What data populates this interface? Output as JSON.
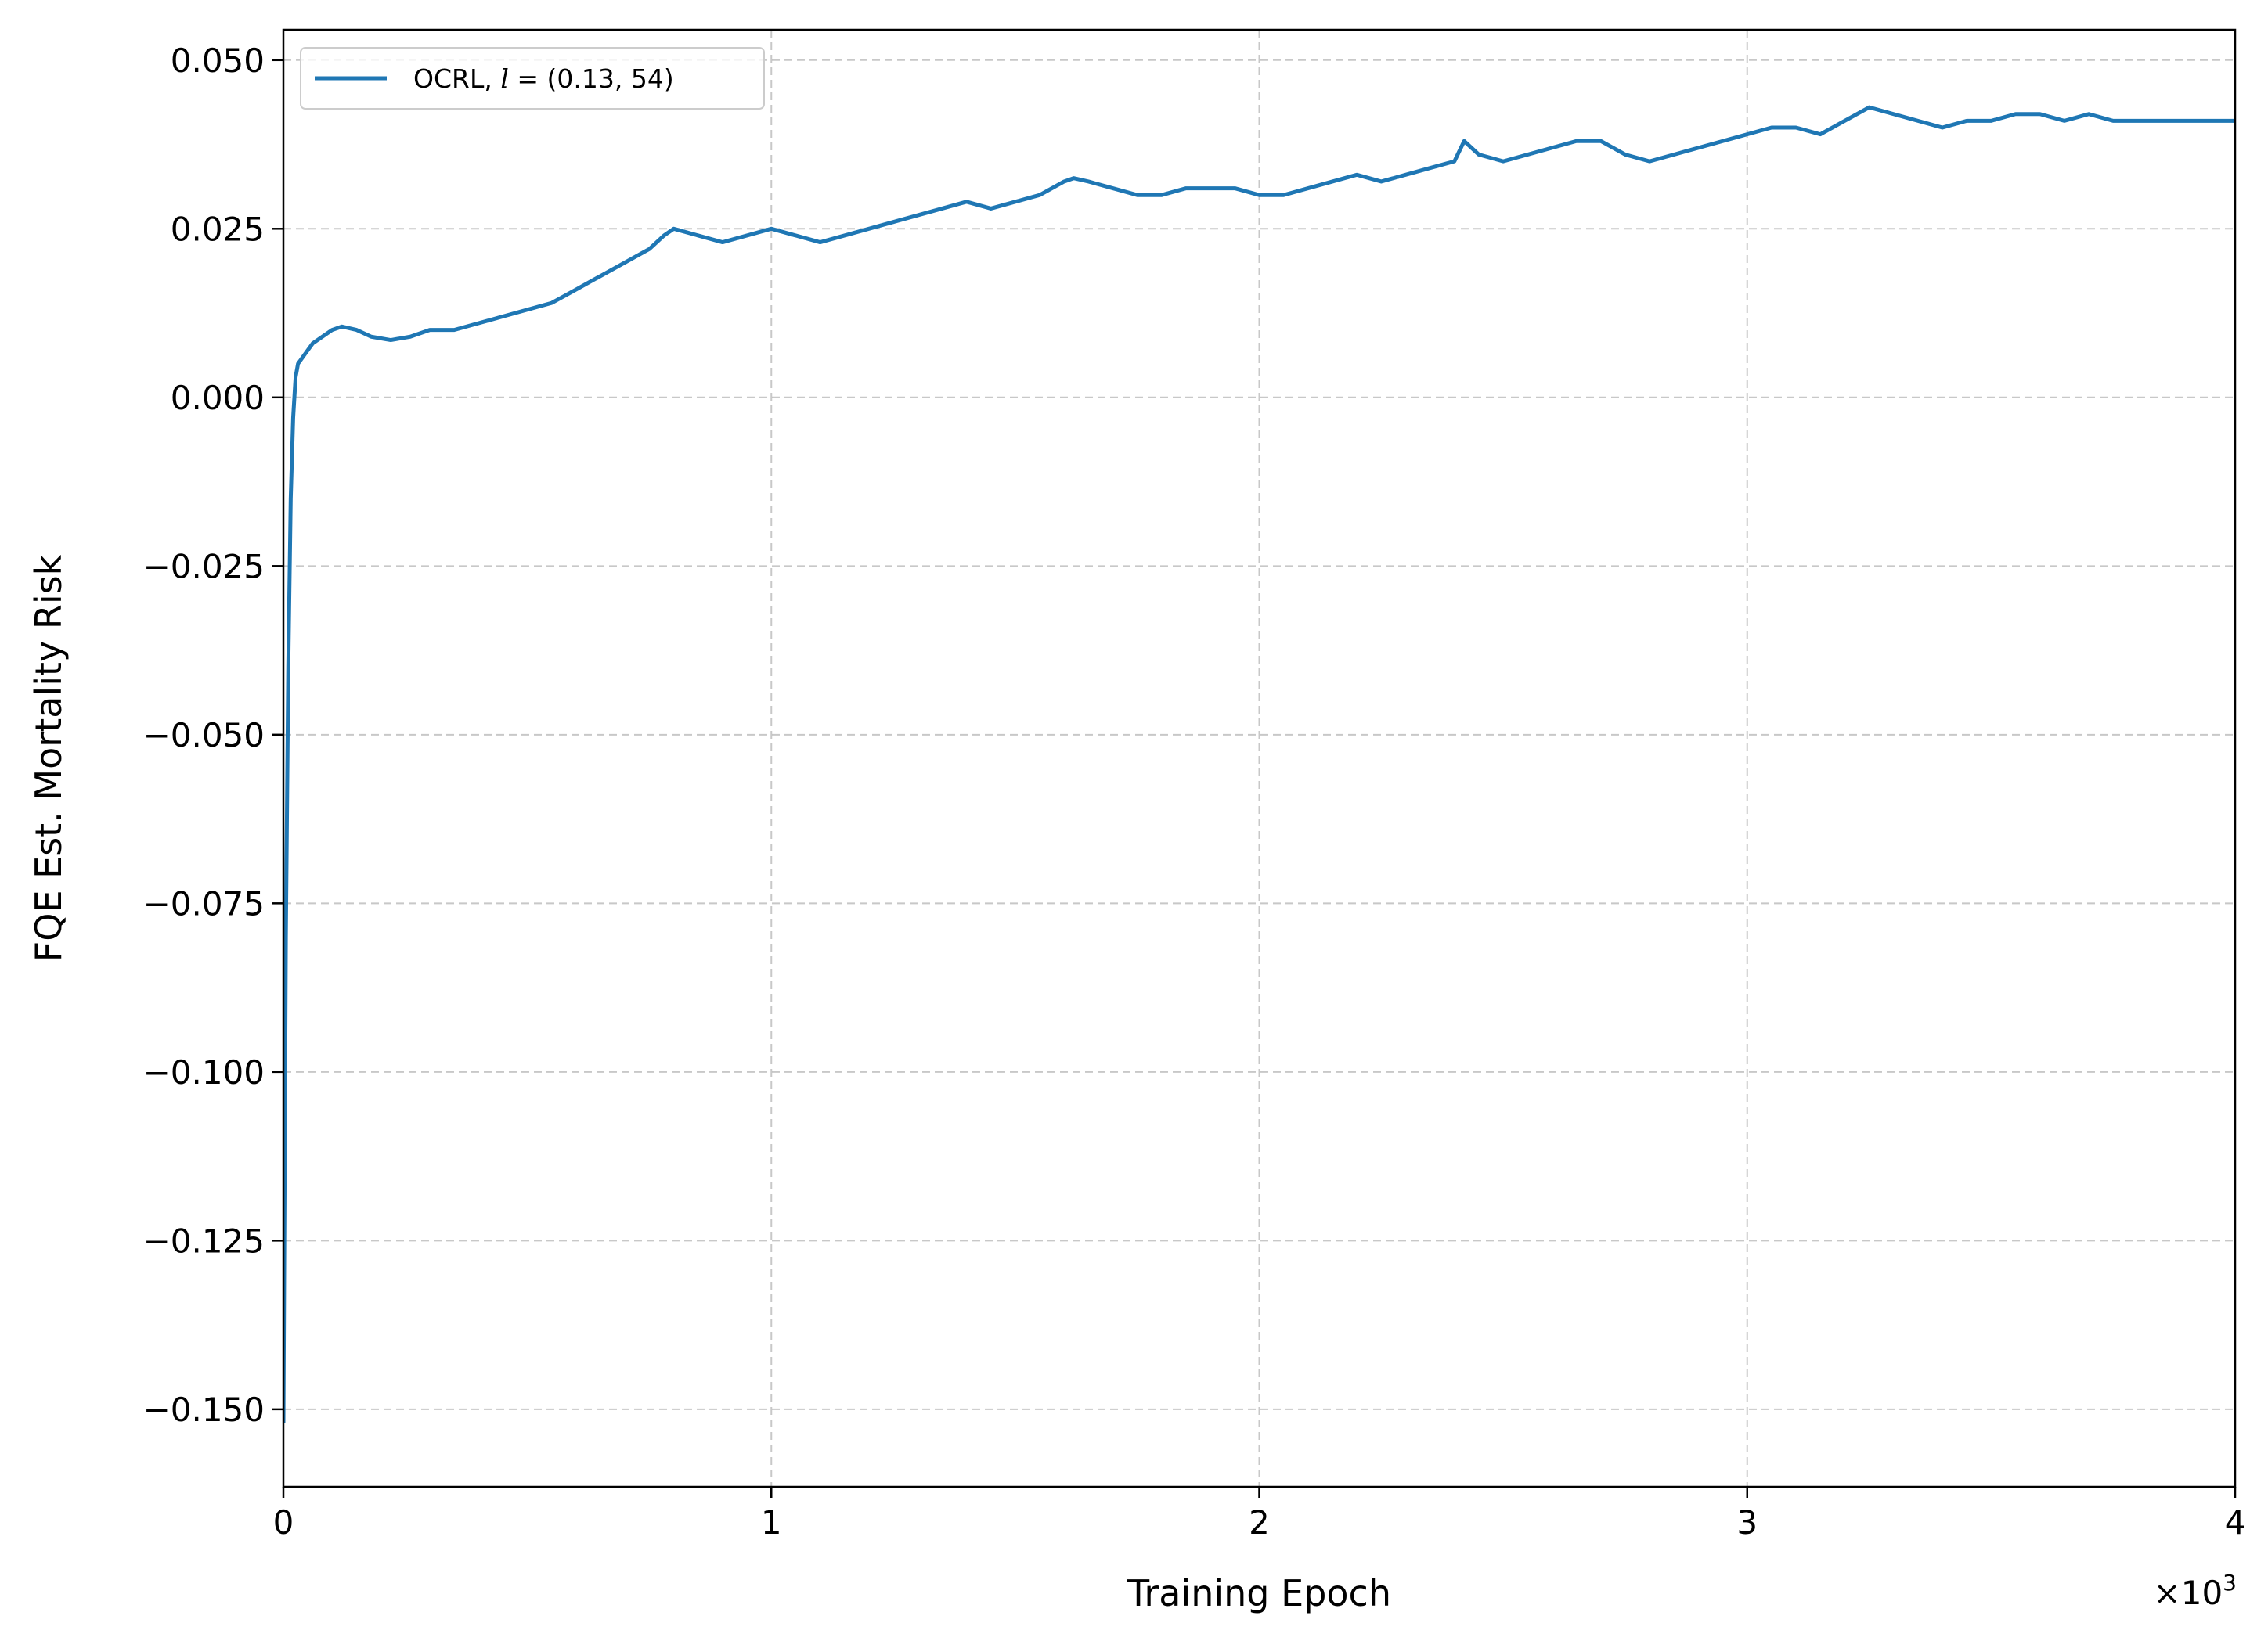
{
  "chart_data": {
    "type": "line",
    "xlabel": "Training Epoch",
    "ylabel": "FQE Est. Mortality Risk",
    "x_offset_label": "×10",
    "x_offset_exp": "3",
    "xlim": [
      0,
      4000
    ],
    "ylim": [
      -0.1615,
      0.0545
    ],
    "x_ticks": [
      0,
      1000,
      2000,
      3000,
      4000
    ],
    "x_tick_labels": [
      "0",
      "1",
      "2",
      "3",
      "4"
    ],
    "y_ticks": [
      -0.15,
      -0.125,
      -0.1,
      -0.075,
      -0.05,
      -0.025,
      0.0,
      0.025,
      0.05
    ],
    "y_tick_labels": [
      "−0.150",
      "−0.125",
      "−0.100",
      "−0.075",
      "−0.050",
      "−0.025",
      "0.000",
      "0.025",
      "0.050"
    ],
    "grid": true,
    "legend_position": "upper-left",
    "series": [
      {
        "name": "OCRL, l = (0.13, 54)",
        "color": "#1f77b4",
        "x": [
          0,
          5,
          10,
          15,
          20,
          25,
          30,
          40,
          50,
          60,
          80,
          100,
          120,
          150,
          180,
          220,
          260,
          300,
          350,
          400,
          450,
          500,
          550,
          600,
          650,
          700,
          750,
          780,
          800,
          850,
          900,
          950,
          1000,
          1050,
          1100,
          1150,
          1200,
          1250,
          1300,
          1350,
          1400,
          1450,
          1500,
          1550,
          1600,
          1620,
          1650,
          1700,
          1750,
          1800,
          1850,
          1900,
          1950,
          2000,
          2050,
          2100,
          2150,
          2200,
          2250,
          2300,
          2350,
          2400,
          2420,
          2450,
          2500,
          2550,
          2600,
          2650,
          2700,
          2750,
          2800,
          2850,
          2900,
          2950,
          3000,
          3050,
          3100,
          3150,
          3200,
          3250,
          3300,
          3350,
          3400,
          3450,
          3500,
          3550,
          3600,
          3650,
          3700,
          3750,
          3800,
          3850,
          3900,
          3950,
          4000
        ],
        "y": [
          -0.152,
          -0.08,
          -0.04,
          -0.015,
          -0.003,
          0.003,
          0.005,
          0.006,
          0.007,
          0.008,
          0.009,
          0.01,
          0.0105,
          0.01,
          0.009,
          0.0085,
          0.009,
          0.01,
          0.01,
          0.011,
          0.012,
          0.013,
          0.014,
          0.016,
          0.018,
          0.02,
          0.022,
          0.024,
          0.025,
          0.024,
          0.023,
          0.024,
          0.025,
          0.024,
          0.023,
          0.024,
          0.025,
          0.026,
          0.027,
          0.028,
          0.029,
          0.028,
          0.029,
          0.03,
          0.032,
          0.0325,
          0.032,
          0.031,
          0.03,
          0.03,
          0.031,
          0.031,
          0.031,
          0.03,
          0.03,
          0.031,
          0.032,
          0.033,
          0.032,
          0.033,
          0.034,
          0.035,
          0.038,
          0.036,
          0.035,
          0.036,
          0.037,
          0.038,
          0.038,
          0.036,
          0.035,
          0.036,
          0.037,
          0.038,
          0.039,
          0.04,
          0.04,
          0.039,
          0.041,
          0.043,
          0.042,
          0.041,
          0.04,
          0.041,
          0.041,
          0.042,
          0.042,
          0.041,
          0.042,
          0.041,
          0.041,
          0.041,
          0.041,
          0.041,
          0.041
        ]
      }
    ]
  }
}
